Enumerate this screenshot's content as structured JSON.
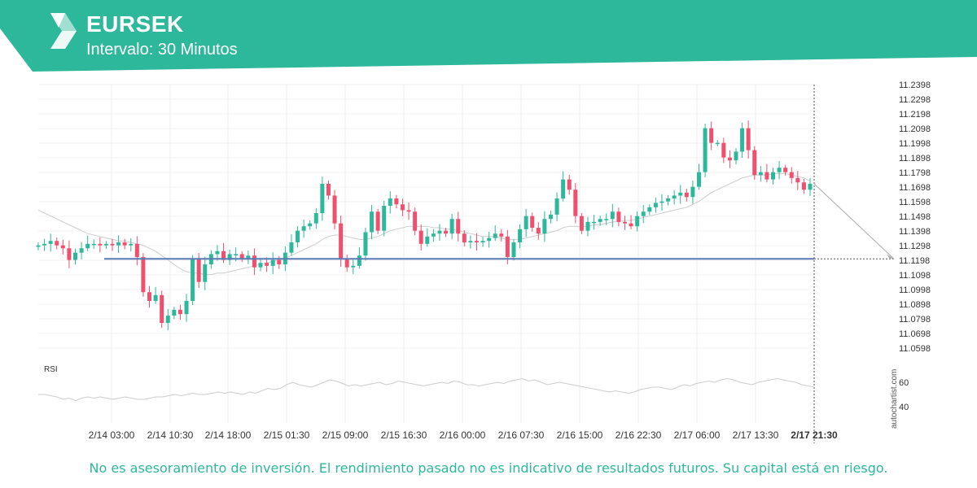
{
  "header": {
    "symbol": "EURSEK",
    "interval": "Intervalo: 30 Minutos",
    "brand_color": "#2db89b"
  },
  "chart_data": {
    "type": "candlestick",
    "up_color": "#2db89b",
    "down_color": "#f0506e",
    "y_ticks": [
      "11.2398",
      "11.2298",
      "11.2198",
      "11.2098",
      "11.1998",
      "11.1898",
      "11.1798",
      "11.1698",
      "11.1598",
      "11.1498",
      "11.1398",
      "11.1298",
      "11.1198",
      "11.1098",
      "11.0998",
      "11.0898",
      "11.0798",
      "11.0698",
      "11.0598"
    ],
    "ylim": [
      11.0598,
      11.2398
    ],
    "x_ticks": [
      "2/14 03:00",
      "2/14 10:30",
      "2/14 18:00",
      "2/15 01:30",
      "2/15 09:00",
      "2/15 16:30",
      "2/16 00:00",
      "2/16 07:30",
      "2/16 15:00",
      "2/16 22:30",
      "2/17 06:00",
      "2/17 13:30",
      "2/17 21:30"
    ],
    "support_level": 11.1208,
    "close_series": [
      11.13,
      11.131,
      11.133,
      11.13,
      11.128,
      11.12,
      11.125,
      11.128,
      11.131,
      11.131,
      11.13,
      11.131,
      11.13,
      11.132,
      11.13,
      11.131,
      11.122,
      11.098,
      11.092,
      11.096,
      11.077,
      11.082,
      11.086,
      11.083,
      11.092,
      11.121,
      11.105,
      11.117,
      11.124,
      11.126,
      11.12,
      11.124,
      11.124,
      11.121,
      11.123,
      11.115,
      11.118,
      11.116,
      11.12,
      11.117,
      11.125,
      11.132,
      11.14,
      11.143,
      11.145,
      11.152,
      11.172,
      11.164,
      11.145,
      11.121,
      11.115,
      11.116,
      11.123,
      11.139,
      11.153,
      11.14,
      11.157,
      11.162,
      11.158,
      11.154,
      11.153,
      11.14,
      11.131,
      11.136,
      11.138,
      11.14,
      11.138,
      11.148,
      11.138,
      11.132,
      11.133,
      11.132,
      11.133,
      11.135,
      11.138,
      11.136,
      11.122,
      11.132,
      11.141,
      11.15,
      11.142,
      11.138,
      11.148,
      11.151,
      11.162,
      11.175,
      11.168,
      11.15,
      11.14,
      11.146,
      11.146,
      11.148,
      11.148,
      11.153,
      11.146,
      11.145,
      11.143,
      11.15,
      11.153,
      11.156,
      11.159,
      11.16,
      11.162,
      11.164,
      11.166,
      11.163,
      11.17,
      11.18,
      11.21,
      11.2,
      11.2,
      11.19,
      11.188,
      11.194,
      11.21,
      11.195,
      11.178,
      11.18,
      11.175,
      11.18,
      11.183,
      11.18,
      11.176,
      11.173,
      11.168,
      11.172
    ],
    "ma_series": [
      11.154,
      11.152,
      11.15,
      11.148,
      11.146,
      11.144,
      11.142,
      11.14,
      11.138,
      11.137,
      11.136,
      11.135,
      11.134,
      11.133,
      11.133,
      11.132,
      11.131,
      11.13,
      11.128,
      11.126,
      11.123,
      11.12,
      11.117,
      11.114,
      11.112,
      11.111,
      11.111,
      11.11,
      11.11,
      11.111,
      11.111,
      11.112,
      11.113,
      11.114,
      11.115,
      11.116,
      11.117,
      11.118,
      11.119,
      11.12,
      11.121,
      11.123,
      11.125,
      11.127,
      11.129,
      11.131,
      11.134,
      11.136,
      11.137,
      11.137,
      11.136,
      11.135,
      11.134,
      11.134,
      11.135,
      11.136,
      11.138,
      11.14,
      11.141,
      11.142,
      11.143,
      11.143,
      11.143,
      11.143,
      11.142,
      11.142,
      11.141,
      11.141,
      11.14,
      11.139,
      11.138,
      11.137,
      11.136,
      11.136,
      11.136,
      11.135,
      11.134,
      11.134,
      11.134,
      11.135,
      11.136,
      11.137,
      11.138,
      11.139,
      11.14,
      11.142,
      11.143,
      11.143,
      11.143,
      11.143,
      11.144,
      11.144,
      11.145,
      11.146,
      11.146,
      11.147,
      11.147,
      11.148,
      11.149,
      11.15,
      11.151,
      11.152,
      11.153,
      11.154,
      11.155,
      11.156,
      11.158,
      11.16,
      11.163,
      11.166,
      11.168,
      11.17,
      11.172,
      11.174,
      11.176,
      11.177,
      11.178,
      11.178,
      11.178,
      11.179,
      11.179,
      11.179,
      11.178,
      11.177,
      11.176,
      11.174
    ],
    "rsi": {
      "label": "RSI",
      "ticks": [
        "60",
        "40"
      ],
      "ylim": [
        30,
        70
      ],
      "values": [
        50,
        50,
        49,
        48,
        46,
        47,
        45,
        47,
        48,
        47,
        48,
        47,
        46,
        47,
        48,
        47,
        46,
        46,
        47,
        48,
        48,
        49,
        50,
        49,
        50,
        51,
        50,
        50,
        51,
        52,
        51,
        52,
        51,
        50,
        52,
        51,
        53,
        55,
        54,
        55,
        58,
        60,
        58,
        57,
        56,
        58,
        60,
        62,
        61,
        59,
        57,
        58,
        57,
        58,
        59,
        60,
        58,
        59,
        61,
        60,
        59,
        58,
        57,
        58,
        59,
        60,
        59,
        61,
        60,
        58,
        58,
        57,
        58,
        59,
        60,
        59,
        61,
        62,
        63,
        61,
        62,
        60,
        58,
        59,
        60,
        59,
        58,
        57,
        56,
        55,
        54,
        53,
        52,
        53,
        52,
        51,
        52,
        54,
        55,
        56,
        56,
        55,
        54,
        56,
        58,
        57,
        59,
        60,
        61,
        60,
        62,
        63,
        62,
        60,
        59,
        58,
        60,
        61,
        62,
        63,
        62,
        61,
        60,
        58,
        57,
        56
      ]
    },
    "watermark": "autochartist.com"
  },
  "footer": {
    "disclaimer": "No es asesoramiento de inversión. El rendimiento pasado no es indicativo de resultados futuros. Su capital está en riesgo."
  }
}
